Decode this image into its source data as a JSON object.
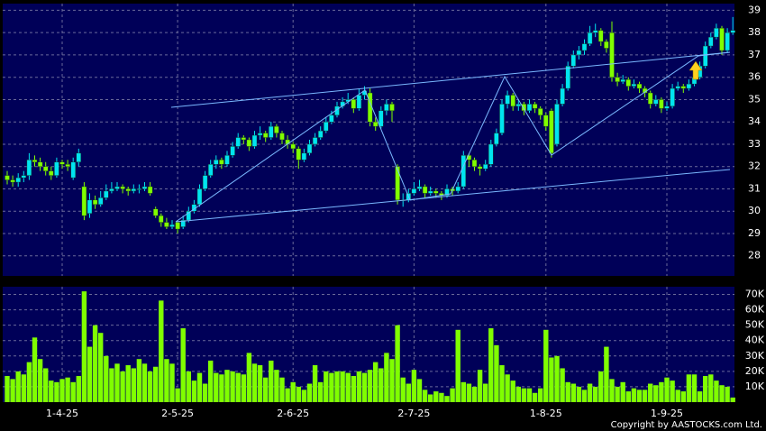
{
  "chart_data": {
    "type": "candlestick",
    "categories": [
      null,
      null,
      null,
      null,
      null,
      null,
      null,
      null,
      null,
      null,
      "1-4-25",
      null,
      null,
      null,
      null,
      null,
      null,
      null,
      null,
      null,
      null,
      null,
      null,
      null,
      null,
      null,
      null,
      null,
      null,
      null,
      null,
      "2-5-25",
      null,
      null,
      null,
      null,
      null,
      null,
      null,
      null,
      null,
      null,
      null,
      null,
      null,
      null,
      null,
      null,
      null,
      null,
      null,
      null,
      "2-6-25",
      null,
      null,
      null,
      null,
      null,
      null,
      null,
      null,
      null,
      null,
      null,
      null,
      null,
      null,
      null,
      null,
      null,
      null,
      null,
      null,
      null,
      "2-7-25",
      null,
      null,
      null,
      null,
      null,
      null,
      null,
      null,
      null,
      null,
      null,
      null,
      null,
      null,
      null,
      null,
      null,
      null,
      null,
      null,
      null,
      null,
      null,
      "1-8-25",
      null,
      null,
      null,
      null,
      null,
      null,
      null,
      null,
      null,
      null,
      null,
      null,
      null,
      null,
      null,
      null,
      null,
      null,
      null,
      null,
      null,
      "1-9-25",
      null,
      null,
      null,
      null,
      null,
      null,
      null,
      null,
      null,
      null,
      null,
      null
    ],
    "ohlc": [
      [
        31.6,
        31.8,
        31.2,
        31.4
      ],
      [
        31.4,
        31.6,
        31.1,
        31.3
      ],
      [
        31.3,
        31.7,
        31.1,
        31.5
      ],
      [
        31.5,
        31.8,
        31.3,
        31.6
      ],
      [
        31.6,
        32.6,
        31.4,
        32.3
      ],
      [
        32.3,
        32.5,
        32.0,
        32.2
      ],
      [
        32.2,
        32.4,
        31.8,
        32.0
      ],
      [
        32.0,
        32.2,
        31.6,
        31.8
      ],
      [
        31.8,
        32.0,
        31.4,
        31.6
      ],
      [
        31.6,
        32.4,
        31.5,
        32.2
      ],
      [
        32.2,
        32.3,
        31.9,
        32.1
      ],
      [
        32.1,
        32.3,
        31.8,
        32.0
      ],
      [
        31.5,
        32.4,
        31.4,
        32.2
      ],
      [
        32.2,
        32.8,
        32.0,
        32.6
      ],
      [
        31.1,
        31.3,
        29.6,
        29.8
      ],
      [
        29.9,
        30.8,
        29.7,
        30.5
      ],
      [
        30.5,
        30.7,
        30.1,
        30.3
      ],
      [
        30.3,
        30.9,
        30.2,
        30.6
      ],
      [
        30.6,
        31.2,
        30.5,
        30.9
      ],
      [
        30.9,
        31.3,
        30.8,
        31.0
      ],
      [
        31.0,
        31.3,
        30.9,
        31.1
      ],
      [
        31.1,
        31.2,
        30.8,
        31.0
      ],
      [
        31.0,
        31.1,
        30.7,
        30.9
      ],
      [
        30.9,
        31.2,
        30.8,
        31.0
      ],
      [
        31.0,
        31.2,
        30.8,
        31.0
      ],
      [
        31.0,
        31.3,
        30.9,
        31.1
      ],
      [
        31.1,
        31.3,
        30.7,
        30.8
      ],
      [
        30.1,
        30.2,
        29.7,
        29.8
      ],
      [
        29.8,
        29.9,
        29.3,
        29.5
      ],
      [
        29.5,
        29.7,
        29.2,
        29.3
      ],
      [
        29.3,
        29.6,
        29.2,
        29.4
      ],
      [
        29.5,
        29.6,
        29.0,
        29.2
      ],
      [
        29.3,
        29.8,
        29.2,
        29.6
      ],
      [
        29.6,
        30.2,
        29.5,
        30.0
      ],
      [
        30.0,
        30.5,
        29.9,
        30.3
      ],
      [
        30.3,
        31.2,
        30.2,
        31.0
      ],
      [
        31.0,
        31.8,
        30.9,
        31.6
      ],
      [
        31.6,
        32.3,
        31.5,
        32.1
      ],
      [
        32.1,
        32.5,
        31.9,
        32.3
      ],
      [
        32.3,
        32.4,
        31.9,
        32.1
      ],
      [
        32.1,
        32.7,
        32.0,
        32.5
      ],
      [
        32.5,
        33.1,
        32.4,
        32.9
      ],
      [
        32.9,
        33.5,
        32.8,
        33.3
      ],
      [
        33.3,
        33.4,
        33.0,
        33.2
      ],
      [
        33.2,
        33.3,
        32.7,
        32.9
      ],
      [
        32.9,
        33.6,
        32.8,
        33.4
      ],
      [
        33.4,
        33.8,
        33.2,
        33.5
      ],
      [
        33.5,
        33.6,
        33.1,
        33.3
      ],
      [
        33.3,
        34.0,
        33.2,
        33.8
      ],
      [
        33.8,
        33.9,
        33.3,
        33.5
      ],
      [
        33.5,
        33.6,
        33.0,
        33.2
      ],
      [
        33.2,
        33.4,
        32.8,
        33.0
      ],
      [
        33.0,
        33.1,
        32.6,
        32.8
      ],
      [
        32.8,
        32.9,
        31.9,
        32.3
      ],
      [
        32.3,
        32.8,
        32.2,
        32.6
      ],
      [
        32.6,
        33.2,
        32.5,
        33.0
      ],
      [
        33.0,
        33.5,
        32.9,
        33.3
      ],
      [
        33.3,
        33.8,
        33.2,
        33.6
      ],
      [
        33.6,
        34.2,
        33.5,
        34.0
      ],
      [
        34.0,
        34.5,
        33.9,
        34.3
      ],
      [
        34.3,
        34.9,
        34.2,
        34.7
      ],
      [
        34.7,
        35.1,
        34.6,
        34.9
      ],
      [
        34.9,
        35.3,
        34.8,
        35.0
      ],
      [
        35.0,
        35.1,
        34.4,
        34.6
      ],
      [
        34.6,
        35.5,
        34.5,
        35.2
      ],
      [
        35.2,
        35.6,
        35.0,
        35.4
      ],
      [
        35.3,
        35.5,
        33.8,
        34.0
      ],
      [
        34.0,
        34.2,
        33.6,
        33.8
      ],
      [
        33.8,
        34.7,
        33.7,
        34.5
      ],
      [
        34.5,
        35.0,
        34.3,
        34.8
      ],
      [
        34.8,
        34.9,
        34.0,
        34.5
      ],
      [
        32.0,
        32.1,
        30.3,
        30.5
      ],
      [
        30.5,
        30.8,
        30.2,
        30.5
      ],
      [
        30.5,
        31.0,
        30.4,
        30.8
      ],
      [
        30.8,
        31.3,
        30.7,
        31.0
      ],
      [
        31.0,
        31.4,
        30.9,
        31.1
      ],
      [
        31.1,
        31.2,
        30.6,
        30.8
      ],
      [
        30.8,
        31.1,
        30.7,
        30.9
      ],
      [
        30.9,
        31.0,
        30.6,
        30.8
      ],
      [
        30.8,
        30.9,
        30.5,
        30.7
      ],
      [
        30.7,
        31.2,
        30.6,
        31.0
      ],
      [
        31.0,
        31.1,
        30.7,
        30.9
      ],
      [
        30.9,
        31.3,
        30.8,
        31.1
      ],
      [
        31.1,
        32.7,
        31.0,
        32.5
      ],
      [
        32.5,
        32.6,
        32.0,
        32.3
      ],
      [
        32.3,
        32.4,
        31.8,
        32.0
      ],
      [
        32.0,
        32.1,
        31.6,
        31.9
      ],
      [
        31.9,
        32.3,
        31.8,
        32.1
      ],
      [
        32.1,
        33.2,
        32.0,
        33.0
      ],
      [
        33.0,
        33.7,
        32.9,
        33.5
      ],
      [
        33.5,
        35.0,
        33.4,
        34.8
      ],
      [
        34.8,
        35.4,
        34.6,
        35.2
      ],
      [
        35.2,
        35.3,
        34.5,
        34.7
      ],
      [
        34.7,
        35.0,
        34.5,
        34.8
      ],
      [
        34.8,
        34.9,
        34.3,
        34.5
      ],
      [
        34.5,
        35.0,
        34.4,
        34.8
      ],
      [
        34.8,
        34.9,
        34.4,
        34.6
      ],
      [
        34.6,
        34.7,
        34.1,
        34.3
      ],
      [
        34.3,
        34.4,
        33.6,
        33.8
      ],
      [
        34.5,
        34.6,
        32.4,
        32.6
      ],
      [
        33.0,
        35.0,
        32.9,
        34.8
      ],
      [
        34.8,
        35.7,
        34.7,
        35.5
      ],
      [
        35.5,
        36.7,
        35.4,
        36.5
      ],
      [
        36.5,
        37.2,
        36.4,
        37.0
      ],
      [
        37.0,
        37.4,
        36.8,
        37.2
      ],
      [
        37.2,
        37.7,
        37.0,
        37.5
      ],
      [
        37.5,
        38.3,
        37.4,
        38.0
      ],
      [
        38.0,
        38.4,
        37.8,
        38.1
      ],
      [
        38.1,
        38.2,
        37.4,
        37.6
      ],
      [
        37.6,
        37.7,
        37.1,
        37.3
      ],
      [
        38.0,
        38.5,
        35.8,
        36.0
      ],
      [
        36.0,
        36.2,
        35.6,
        35.8
      ],
      [
        35.8,
        36.1,
        35.7,
        35.9
      ],
      [
        35.9,
        36.0,
        35.4,
        35.6
      ],
      [
        35.6,
        35.9,
        35.5,
        35.7
      ],
      [
        35.7,
        35.8,
        35.3,
        35.5
      ],
      [
        35.5,
        35.6,
        35.1,
        35.3
      ],
      [
        35.3,
        35.4,
        34.6,
        34.8
      ],
      [
        34.8,
        35.2,
        34.7,
        35.0
      ],
      [
        35.0,
        35.1,
        34.4,
        34.6
      ],
      [
        34.6,
        34.9,
        34.5,
        34.7
      ],
      [
        34.7,
        35.7,
        34.6,
        35.5
      ],
      [
        35.5,
        35.8,
        35.4,
        35.6
      ],
      [
        35.6,
        35.7,
        35.3,
        35.5
      ],
      [
        35.5,
        35.9,
        35.4,
        35.7
      ],
      [
        35.7,
        36.2,
        35.6,
        36.0
      ],
      [
        36.0,
        36.7,
        35.9,
        36.5
      ],
      [
        36.5,
        37.6,
        36.4,
        37.4
      ],
      [
        37.4,
        38.0,
        37.3,
        37.8
      ],
      [
        37.8,
        38.4,
        37.7,
        38.2
      ],
      [
        38.2,
        38.3,
        37.0,
        37.2
      ],
      [
        37.2,
        38.2,
        37.1,
        38.0
      ],
      [
        38.0,
        38.7,
        37.9,
        38.1
      ]
    ],
    "volume": [
      17000,
      15000,
      20000,
      18000,
      26000,
      42000,
      28000,
      22000,
      14000,
      13000,
      15000,
      16000,
      13000,
      17000,
      72000,
      36000,
      50000,
      45000,
      30000,
      22000,
      25000,
      20000,
      24000,
      22000,
      28000,
      25000,
      20000,
      23000,
      66000,
      28000,
      25000,
      9000,
      48000,
      20000,
      14000,
      19000,
      12000,
      27000,
      19000,
      18000,
      21000,
      20000,
      19000,
      18000,
      32000,
      25000,
      24000,
      16000,
      27000,
      21000,
      16000,
      9000,
      13000,
      10000,
      8000,
      12000,
      24000,
      13000,
      20000,
      19000,
      20000,
      20000,
      19000,
      17000,
      20000,
      19000,
      21000,
      26000,
      22000,
      32000,
      28000,
      50000,
      16000,
      12000,
      21000,
      15000,
      8000,
      5000,
      7000,
      6000,
      4000,
      9000,
      47000,
      13000,
      12000,
      10000,
      21000,
      12000,
      48000,
      37000,
      24000,
      18000,
      14000,
      10000,
      9000,
      9000,
      6000,
      9000,
      47000,
      29000,
      30000,
      22000,
      13000,
      12000,
      10000,
      8000,
      12000,
      10000,
      20000,
      36000,
      15000,
      10000,
      13000,
      7000,
      9000,
      8000,
      8000,
      12000,
      11000,
      13000,
      16000,
      14000,
      8000,
      7000,
      18000,
      18000,
      7000,
      17000,
      18000,
      14000,
      11000,
      10000,
      3000
    ],
    "up_color": "#00e4f0",
    "down_color": "#80ff00",
    "volume_color": "#80ff00",
    "ylim": [
      27.1,
      39.3
    ],
    "yticks": [
      28,
      29,
      30,
      31,
      32,
      33,
      34,
      35,
      36,
      37,
      38,
      39
    ],
    "y2lim": [
      0,
      75000
    ],
    "y2ticks": [
      {
        "value": 10000,
        "label": "10K"
      },
      {
        "value": 20000,
        "label": "20K"
      },
      {
        "value": 30000,
        "label": "30K"
      },
      {
        "value": 40000,
        "label": "40K"
      },
      {
        "value": 50000,
        "label": "50K"
      },
      {
        "value": 60000,
        "label": "60K"
      },
      {
        "value": 70000,
        "label": "70K"
      }
    ],
    "grid": true,
    "copyright": "Copyright by AASTOCKS.com Ltd."
  }
}
